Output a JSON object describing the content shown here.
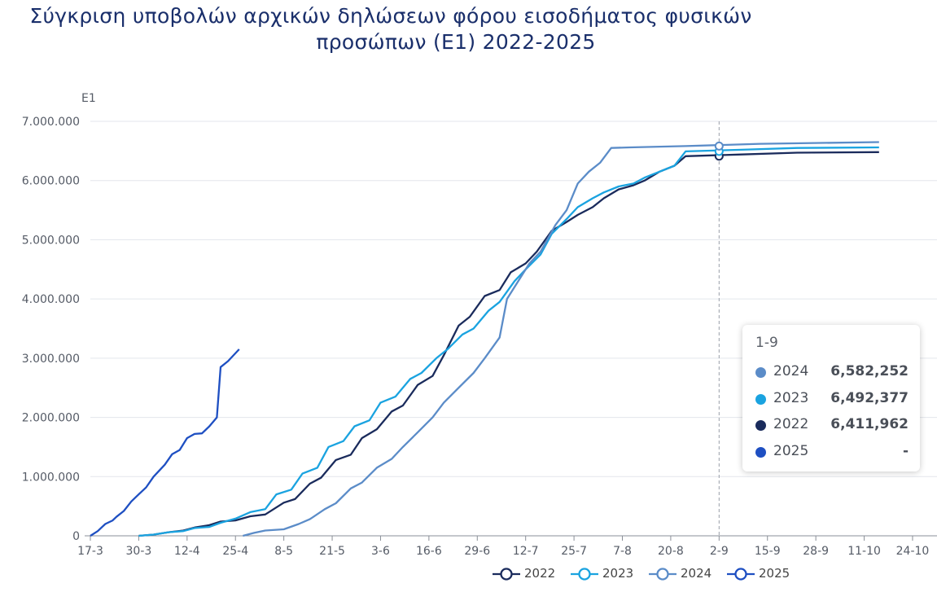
{
  "title": {
    "line1": "Σύγκριση υποβολών αρχικών δηλώσεων φόρου εισοδήματος φυσικών",
    "line2": "προσώπων (Ε1) 2022-2025"
  },
  "chart_data": {
    "type": "line",
    "title": "Σύγκριση υποβολών αρχικών δηλώσεων φόρου εισοδήματος φυσικών προσώπων (Ε1) 2022-2025",
    "ylabel": "E1",
    "xlabel": "",
    "ylim": [
      0,
      7000000
    ],
    "y_ticks": [
      "0",
      "1.000.000",
      "2.000.000",
      "3.000.000",
      "4.000.000",
      "5.000.000",
      "6.000.000",
      "7.000.000"
    ],
    "x_ticks": [
      "17-3",
      "30-3",
      "12-4",
      "25-4",
      "8-5",
      "21-5",
      "3-6",
      "16-6",
      "29-6",
      "12-7",
      "25-7",
      "7-8",
      "20-8",
      "2-9",
      "15-9",
      "28-9",
      "11-10",
      "24-10"
    ],
    "x_start": "17-3",
    "grid": true,
    "legend_position": "bottom",
    "hover_date": "2-9",
    "series": [
      {
        "name": "2022",
        "color": "#1a2b5c",
        "points": [
          [
            13,
            0
          ],
          [
            17,
            20000
          ],
          [
            21,
            60000
          ],
          [
            25,
            90000
          ],
          [
            28,
            140000
          ],
          [
            32,
            180000
          ],
          [
            35,
            240000
          ],
          [
            39,
            260000
          ],
          [
            43,
            330000
          ],
          [
            47,
            360000
          ],
          [
            52,
            560000
          ],
          [
            55,
            620000
          ],
          [
            59,
            880000
          ],
          [
            62,
            980000
          ],
          [
            66,
            1280000
          ],
          [
            70,
            1370000
          ],
          [
            73,
            1650000
          ],
          [
            77,
            1800000
          ],
          [
            81,
            2100000
          ],
          [
            84,
            2200000
          ],
          [
            88,
            2550000
          ],
          [
            92,
            2700000
          ],
          [
            95,
            3050000
          ],
          [
            99,
            3550000
          ],
          [
            102,
            3700000
          ],
          [
            106,
            4050000
          ],
          [
            110,
            4150000
          ],
          [
            113,
            4450000
          ],
          [
            117,
            4600000
          ],
          [
            120,
            4800000
          ],
          [
            124,
            5150000
          ],
          [
            128,
            5300000
          ],
          [
            131,
            5420000
          ],
          [
            135,
            5550000
          ],
          [
            138,
            5700000
          ],
          [
            142,
            5850000
          ],
          [
            146,
            5920000
          ],
          [
            149,
            6000000
          ],
          [
            153,
            6150000
          ],
          [
            157,
            6250000
          ],
          [
            160,
            6411962
          ],
          [
            175,
            6440000
          ],
          [
            190,
            6470000
          ],
          [
            212,
            6480000
          ]
        ]
      },
      {
        "name": "2023",
        "color": "#1aa3e0",
        "points": [
          [
            13,
            0
          ],
          [
            17,
            20000
          ],
          [
            21,
            60000
          ],
          [
            25,
            80000
          ],
          [
            28,
            130000
          ],
          [
            32,
            150000
          ],
          [
            35,
            220000
          ],
          [
            39,
            290000
          ],
          [
            43,
            400000
          ],
          [
            47,
            450000
          ],
          [
            50,
            700000
          ],
          [
            54,
            780000
          ],
          [
            57,
            1050000
          ],
          [
            61,
            1150000
          ],
          [
            64,
            1500000
          ],
          [
            68,
            1600000
          ],
          [
            71,
            1850000
          ],
          [
            75,
            1950000
          ],
          [
            78,
            2250000
          ],
          [
            82,
            2350000
          ],
          [
            86,
            2650000
          ],
          [
            89,
            2750000
          ],
          [
            93,
            3000000
          ],
          [
            96,
            3150000
          ],
          [
            100,
            3400000
          ],
          [
            103,
            3500000
          ],
          [
            107,
            3800000
          ],
          [
            110,
            3950000
          ],
          [
            114,
            4300000
          ],
          [
            117,
            4500000
          ],
          [
            121,
            4750000
          ],
          [
            124,
            5100000
          ],
          [
            128,
            5350000
          ],
          [
            131,
            5550000
          ],
          [
            135,
            5700000
          ],
          [
            138,
            5800000
          ],
          [
            142,
            5900000
          ],
          [
            146,
            5950000
          ],
          [
            149,
            6050000
          ],
          [
            153,
            6150000
          ],
          [
            157,
            6250000
          ],
          [
            160,
            6492377
          ],
          [
            175,
            6520000
          ],
          [
            190,
            6550000
          ],
          [
            212,
            6560000
          ]
        ]
      },
      {
        "name": "2024",
        "color": "#5b8cc8",
        "points": [
          [
            41,
            0
          ],
          [
            44,
            50000
          ],
          [
            47,
            90000
          ],
          [
            52,
            110000
          ],
          [
            56,
            200000
          ],
          [
            59,
            280000
          ],
          [
            63,
            450000
          ],
          [
            66,
            550000
          ],
          [
            70,
            800000
          ],
          [
            73,
            900000
          ],
          [
            77,
            1150000
          ],
          [
            81,
            1300000
          ],
          [
            84,
            1500000
          ],
          [
            88,
            1750000
          ],
          [
            92,
            2000000
          ],
          [
            95,
            2250000
          ],
          [
            99,
            2500000
          ],
          [
            103,
            2750000
          ],
          [
            106,
            3000000
          ],
          [
            110,
            3350000
          ],
          [
            112,
            4000000
          ],
          [
            115,
            4300000
          ],
          [
            118,
            4600000
          ],
          [
            121,
            4800000
          ],
          [
            125,
            5250000
          ],
          [
            128,
            5500000
          ],
          [
            131,
            5950000
          ],
          [
            134,
            6150000
          ],
          [
            137,
            6300000
          ],
          [
            140,
            6550000
          ],
          [
            145,
            6560000
          ],
          [
            160,
            6582252
          ],
          [
            180,
            6620000
          ],
          [
            212,
            6650000
          ]
        ]
      },
      {
        "name": "2025",
        "color": "#1e4fc2",
        "points": [
          [
            0,
            0
          ],
          [
            2,
            80000
          ],
          [
            4,
            200000
          ],
          [
            6,
            260000
          ],
          [
            7,
            320000
          ],
          [
            9,
            420000
          ],
          [
            11,
            580000
          ],
          [
            13,
            700000
          ],
          [
            15,
            820000
          ],
          [
            17,
            1000000
          ],
          [
            20,
            1200000
          ],
          [
            22,
            1380000
          ],
          [
            24,
            1450000
          ],
          [
            26,
            1650000
          ],
          [
            28,
            1720000
          ],
          [
            30,
            1730000
          ],
          [
            32,
            1850000
          ],
          [
            34,
            2000000
          ],
          [
            35,
            2850000
          ],
          [
            37,
            2950000
          ],
          [
            40,
            3150000
          ]
        ]
      }
    ]
  },
  "tooltip": {
    "date": "1-9",
    "rows": [
      {
        "name": "2024",
        "value": "6,582,252",
        "color": "#5b8cc8"
      },
      {
        "name": "2023",
        "value": "6,492,377",
        "color": "#1aa3e0"
      },
      {
        "name": "2022",
        "value": "6,411,962",
        "color": "#1a2b5c"
      },
      {
        "name": "2025",
        "value": "-",
        "color": "#1e4fc2"
      }
    ]
  },
  "legend": [
    {
      "name": "2022",
      "color": "#1a2b5c"
    },
    {
      "name": "2023",
      "color": "#1aa3e0"
    },
    {
      "name": "2024",
      "color": "#5b8cc8"
    },
    {
      "name": "2025",
      "color": "#1e4fc2"
    }
  ]
}
